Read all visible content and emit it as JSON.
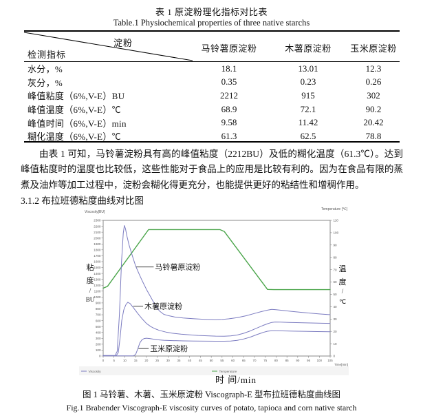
{
  "page": {
    "table_title_cn": "表 1  原淀粉理化指标对比表",
    "table_title_en": "Table.1 Physiochemical properties of three native starchs"
  },
  "table": {
    "corner": {
      "top": "淀粉",
      "bottom": "检测指标"
    },
    "columns": [
      "马铃薯原淀粉",
      "木薯原淀粉",
      "玉米原淀粉"
    ],
    "rows": [
      {
        "indicator": "水分，%",
        "values": [
          "18.1",
          "13.01",
          "12.3"
        ]
      },
      {
        "indicator": "灰分，%",
        "values": [
          "0.35",
          "0.23",
          "0.26"
        ]
      },
      {
        "indicator": "峰值粘度（6%,V-E）BU",
        "values": [
          "2212",
          "915",
          "302"
        ]
      },
      {
        "indicator": "峰值温度（6%,V-E）℃",
        "values": [
          "68.9",
          "72.1",
          "90.2"
        ]
      },
      {
        "indicator": "峰值时间（6%,V-E）min",
        "values": [
          "9.58",
          "11.42",
          "20.42"
        ]
      },
      {
        "indicator": "糊化温度（6%,V-E）℃",
        "values": [
          "61.3",
          "62.5",
          "78.8"
        ]
      }
    ]
  },
  "paragraph": "由表 1 可知，马铃薯淀粉具有高的峰值粘度（2212BU）及低的糊化温度（61.3℃）。达到峰值粘度时的温度也比较低，这些性能对于食品上的应用是比较有利的。因为在食品有限的蒸煮及油炸等加工过程中，淀粉会糊化得更充分，也能提供更好的粘结性和增稠作用。",
  "section_heading": "3.1.2 布拉班德粘度曲线对比图",
  "figure": {
    "caption_cn": "图 1  马铃薯、木薯、玉米原淀粉 Viscograph-E 型布拉班德粘度曲线图",
    "caption_en": "Fig.1 Brabender Viscograph-E viscosity curves of potato, tapioca and corn native starch"
  },
  "chart_data": {
    "type": "line",
    "title": "",
    "top_left_label": "Viscosity[BU]",
    "top_right_label": "Temperature [℃]",
    "xlabel": "时 间/min",
    "xlabel_right": "Time[min]",
    "ylabel_left": "粘度/BU",
    "ylabel_right": "温度/℃",
    "ylabel_left_stack": [
      "粘",
      "度",
      "/",
      "BU"
    ],
    "ylabel_right_stack": [
      "温",
      "度",
      "/",
      "℃"
    ],
    "x_range": [
      0,
      105
    ],
    "x_tick_step": 5,
    "y_left_range": [
      0,
      2300
    ],
    "y_left_tick_step": 100,
    "y_right_range": [
      0,
      110
    ],
    "y_right_tick_step": 10,
    "grid": false,
    "legend_position": "bottom",
    "colors": {
      "viscosity": "#7b7bc0",
      "temperature": "#4aa54a"
    },
    "legend": [
      {
        "label": "Viscosity",
        "color": "#7b7bc0"
      },
      {
        "label": "Temperature",
        "color": "#4aa54a"
      }
    ],
    "annotations": [
      {
        "text": "马铃薯原淀粉",
        "tip_x": 15.3,
        "tip_y": 1510,
        "label_x": 24
      },
      {
        "text": "木薯原淀粉",
        "tip_x": 13.9,
        "tip_y": 845,
        "label_x": 19.1
      },
      {
        "text": "玉米原淀粉",
        "tip_x": 16.3,
        "tip_y": 128,
        "label_x": 21.7
      }
    ],
    "series": [
      {
        "id": "temperature",
        "name": "Temperature",
        "axis": "right",
        "color": "#4aa54a",
        "width": 1.4,
        "points": [
          [
            0,
            55
          ],
          [
            2,
            56.5
          ],
          [
            21,
            102.5
          ],
          [
            54,
            102.5
          ],
          [
            56,
            101
          ],
          [
            76,
            54
          ],
          [
            79,
            53.8
          ],
          [
            105,
            53.8
          ]
        ]
      },
      {
        "id": "potato",
        "name": "马铃薯原淀粉",
        "axis": "left",
        "color": "#7b7bc0",
        "width": 1,
        "points": [
          [
            0,
            8
          ],
          [
            5.5,
            8
          ],
          [
            6.5,
            80
          ],
          [
            7.5,
            700
          ],
          [
            8.5,
            1600
          ],
          [
            9.3,
            2080
          ],
          [
            9.8,
            2212
          ],
          [
            10.3,
            2160
          ],
          [
            11,
            2030
          ],
          [
            12,
            1880
          ],
          [
            13.5,
            1700
          ],
          [
            15,
            1530
          ],
          [
            16.5,
            1400
          ],
          [
            18,
            1280
          ],
          [
            20,
            1130
          ],
          [
            22,
            1000
          ],
          [
            24,
            868
          ],
          [
            26,
            765
          ],
          [
            28,
            708
          ],
          [
            30,
            685
          ],
          [
            33,
            662
          ],
          [
            37,
            645
          ],
          [
            42,
            632
          ],
          [
            47,
            622
          ],
          [
            52,
            617
          ],
          [
            55,
            620
          ],
          [
            58,
            630
          ],
          [
            62,
            652
          ],
          [
            66,
            682
          ],
          [
            70,
            722
          ],
          [
            73,
            752
          ],
          [
            76,
            778
          ],
          [
            78,
            790
          ],
          [
            80,
            786
          ],
          [
            83,
            774
          ],
          [
            87,
            758
          ],
          [
            91,
            742
          ],
          [
            95,
            730
          ],
          [
            100,
            713
          ],
          [
            105,
            700
          ]
        ]
      },
      {
        "id": "tapioca",
        "name": "木薯原淀粉",
        "axis": "left",
        "color": "#7b7bc0",
        "width": 1,
        "points": [
          [
            0,
            5
          ],
          [
            6,
            5
          ],
          [
            7,
            60
          ],
          [
            7.8,
            300
          ],
          [
            8.6,
            600
          ],
          [
            9.5,
            780
          ],
          [
            10.5,
            870
          ],
          [
            11.4,
            912
          ],
          [
            12.5,
            888
          ],
          [
            14,
            818
          ],
          [
            16,
            722
          ],
          [
            18,
            632
          ],
          [
            20,
            552
          ],
          [
            22,
            500
          ],
          [
            24,
            462
          ],
          [
            26,
            434
          ],
          [
            29,
            406
          ],
          [
            32,
            387
          ],
          [
            36,
            370
          ],
          [
            40,
            358
          ],
          [
            44,
            349
          ],
          [
            48,
            343
          ],
          [
            52,
            337
          ],
          [
            56,
            336
          ],
          [
            59,
            342
          ],
          [
            62,
            356
          ],
          [
            65,
            385
          ],
          [
            68,
            425
          ],
          [
            71,
            472
          ],
          [
            74,
            520
          ],
          [
            76,
            548
          ],
          [
            78,
            570
          ],
          [
            79.5,
            577
          ],
          [
            82,
            574
          ],
          [
            86,
            570
          ],
          [
            91,
            565
          ],
          [
            96,
            560
          ],
          [
            101,
            556
          ],
          [
            105,
            553
          ]
        ]
      },
      {
        "id": "corn",
        "name": "玉米原淀粉",
        "axis": "left",
        "color": "#7b7bc0",
        "width": 1,
        "points": [
          [
            0,
            3
          ],
          [
            14,
            3
          ],
          [
            15,
            25
          ],
          [
            16,
            120
          ],
          [
            17,
            225
          ],
          [
            18,
            278
          ],
          [
            19,
            296
          ],
          [
            20,
            302
          ],
          [
            21.5,
            296
          ],
          [
            23,
            287
          ],
          [
            25,
            276
          ],
          [
            28,
            267
          ],
          [
            32,
            261
          ],
          [
            37,
            257
          ],
          [
            42,
            254
          ],
          [
            47,
            252
          ],
          [
            52,
            251
          ],
          [
            56,
            251
          ],
          [
            59,
            255
          ],
          [
            62,
            266
          ],
          [
            65,
            288
          ],
          [
            68,
            320
          ],
          [
            71,
            362
          ],
          [
            74,
            400
          ],
          [
            76,
            420
          ],
          [
            78,
            430
          ],
          [
            80,
            429
          ],
          [
            83,
            426
          ],
          [
            88,
            422
          ],
          [
            93,
            419
          ],
          [
            99,
            415
          ],
          [
            105,
            412
          ]
        ]
      }
    ]
  }
}
